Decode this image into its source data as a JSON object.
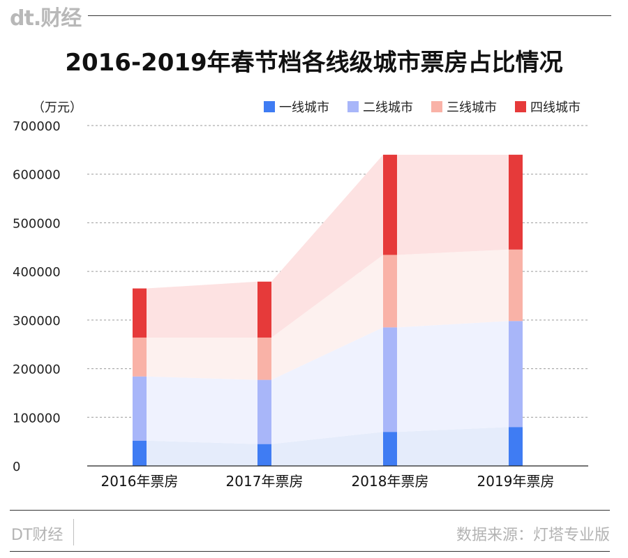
{
  "brand": {
    "logo_text": "dt.财经"
  },
  "title": "2016-2019年春节档各线级城市票房占比情况",
  "footer": {
    "left": "DT财经",
    "right": "数据来源：灯塔专业版"
  },
  "chart_data": {
    "type": "bar",
    "stacked": true,
    "unit": "（万元）",
    "categories": [
      "2016年票房",
      "2017年票房",
      "2018年票房",
      "2019年票房"
    ],
    "ylim": [
      0,
      700000
    ],
    "yticks": [
      0,
      100000,
      200000,
      300000,
      400000,
      500000,
      600000,
      700000
    ],
    "grid": true,
    "legend_position": "top-right",
    "series": [
      {
        "name": "一线城市",
        "values": [
          52000,
          45000,
          70000,
          80000
        ],
        "color": "#3f7cf3",
        "band_color": "#e5ecfb"
      },
      {
        "name": "二线城市",
        "values": [
          132000,
          132000,
          215000,
          218000
        ],
        "color": "#a8b6f9",
        "band_color": "#eff2fe"
      },
      {
        "name": "三线城市",
        "values": [
          80000,
          87000,
          149000,
          147000
        ],
        "color": "#f9b2a7",
        "band_color": "#fdf1ef"
      },
      {
        "name": "四线城市",
        "values": [
          101000,
          115000,
          206000,
          195000
        ],
        "color": "#e63a3a",
        "band_color": "#fde2e2"
      }
    ]
  }
}
